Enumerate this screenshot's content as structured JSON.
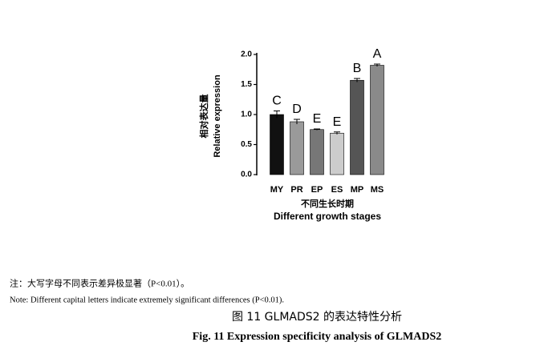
{
  "chart_data": {
    "type": "bar",
    "y_label": [
      "相对表达量",
      "Relative expression"
    ],
    "x_label": [
      "不同生长时期",
      "Different growth stages"
    ],
    "categories": [
      "MY",
      "PR",
      "EP",
      "ES",
      "MP",
      "MS"
    ],
    "values": [
      1.0,
      0.88,
      0.75,
      0.69,
      1.57,
      1.82
    ],
    "errors": [
      0.06,
      0.04,
      0.01,
      0.02,
      0.03,
      0.02
    ],
    "annotations": [
      "C",
      "D",
      "E",
      "E",
      "B",
      "A"
    ],
    "colors": [
      "#111111",
      "#9a9a9a",
      "#777777",
      "#cccccc",
      "#555555",
      "#8a8a8a"
    ],
    "ylim": [
      0,
      2.0
    ],
    "yticks": [
      {
        "value": 0,
        "label": "0.0"
      },
      0.5,
      {
        "value": 1.0,
        "label": "1.0"
      },
      1.5,
      {
        "value": 2.0,
        "label": "2.0"
      }
    ]
  },
  "notes": [
    "注：大写字母不同表示差异极显著（P<0.01）。",
    "Note: Different capital letters indicate extremely significant differences (P<0.01)."
  ],
  "caption": {
    "cn": "图 11 GLMADS2 的表达特性分析",
    "en": "Fig. 11 Expression specificity analysis of GLMADS2"
  }
}
